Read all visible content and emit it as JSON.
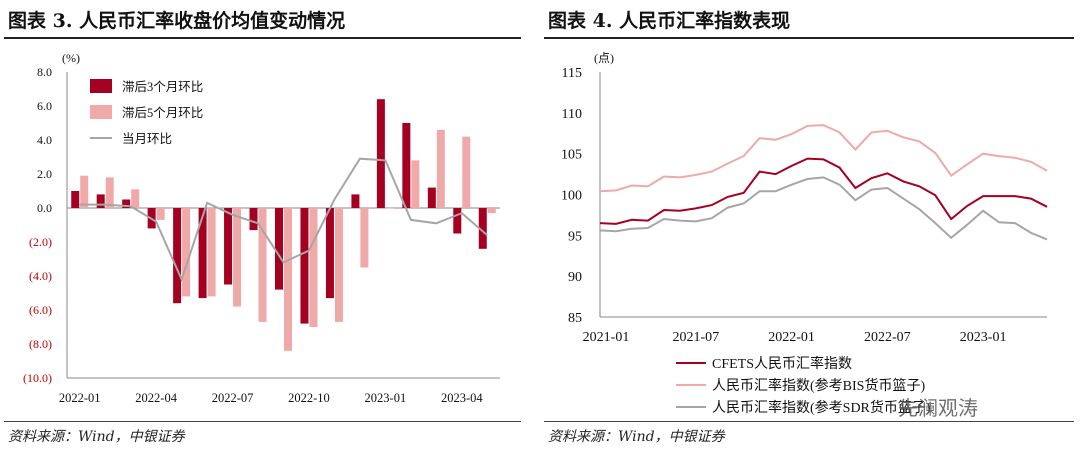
{
  "left": {
    "title": "图表 3. 人民币汇率收盘价均值变动情况",
    "source": "资料来源：Wind，中银证券",
    "chart_data": {
      "type": "bar",
      "title": "人民币汇率收盘价均值变动情况",
      "unit_label": "(%)",
      "ylim": [
        -10,
        8
      ],
      "yticks": [
        8,
        6,
        4,
        2,
        0,
        -2,
        -4,
        -6,
        -8,
        -10
      ],
      "ytick_labels": [
        "8.0",
        "6.0",
        "4.0",
        "2.0",
        "0.0",
        "(2.0)",
        "(4.0)",
        "(6.0)",
        "(8.0)",
        "(10.0)"
      ],
      "categories": [
        "2022-01",
        "2022-02",
        "2022-03",
        "2022-04",
        "2022-05",
        "2022-06",
        "2022-07",
        "2022-08",
        "2022-09",
        "2022-10",
        "2022-11",
        "2022-12",
        "2023-01",
        "2023-02",
        "2023-03",
        "2023-04",
        "2023-05"
      ],
      "x_tick_labels": [
        "2022-01",
        "2022-04",
        "2022-07",
        "2022-10",
        "2023-01",
        "2023-04"
      ],
      "x_tick_index": [
        0,
        3,
        6,
        9,
        12,
        15
      ],
      "series": [
        {
          "name": "滞后3个月环比",
          "type": "bar",
          "color": "#a50021",
          "values": [
            1.0,
            0.8,
            0.5,
            -1.2,
            -5.6,
            -5.3,
            -4.5,
            -1.3,
            -4.8,
            -6.8,
            -5.3,
            0.8,
            6.4,
            5.0,
            1.2,
            -1.5,
            -2.4
          ]
        },
        {
          "name": "滞后5个月环比",
          "type": "bar",
          "color": "#efa9a9",
          "values": [
            1.9,
            1.8,
            1.1,
            -0.7,
            -5.2,
            -5.2,
            -5.8,
            -6.7,
            -8.4,
            -7.0,
            -6.7,
            -3.5,
            0.0,
            2.8,
            4.6,
            4.2,
            -0.3
          ]
        },
        {
          "name": "当月环比",
          "type": "line",
          "color": "#a6a6a6",
          "values": [
            0.2,
            0.2,
            0.1,
            -0.8,
            -4.2,
            0.3,
            -0.4,
            -0.9,
            -3.2,
            -2.5,
            0.5,
            2.9,
            2.8,
            -0.7,
            -0.9,
            -0.3,
            -1.6
          ]
        }
      ]
    }
  },
  "right": {
    "title": "图表 4. 人民币汇率指数表现",
    "source": "资料来源：Wind，中银证券",
    "watermark": "先澜观涛",
    "chart_data": {
      "type": "line",
      "title": "人民币汇率指数表现",
      "unit_label": "(点)",
      "ylim": [
        85,
        115
      ],
      "yticks": [
        115,
        110,
        105,
        100,
        95,
        90,
        85
      ],
      "ytick_labels": [
        "115",
        "110",
        "105",
        "100",
        "95",
        "90",
        "85"
      ],
      "x": [
        "2021-01",
        "2021-02",
        "2021-03",
        "2021-04",
        "2021-05",
        "2021-06",
        "2021-07",
        "2021-08",
        "2021-09",
        "2021-10",
        "2021-11",
        "2021-12",
        "2022-01",
        "2022-02",
        "2022-03",
        "2022-04",
        "2022-05",
        "2022-06",
        "2022-07",
        "2022-08",
        "2022-09",
        "2022-10",
        "2022-11",
        "2022-12",
        "2023-01",
        "2023-02",
        "2023-03",
        "2023-04",
        "2023-05"
      ],
      "x_tick_labels": [
        "2021-01",
        "2021-07",
        "2022-01",
        "2022-07",
        "2023-01"
      ],
      "x_tick_index": [
        0,
        6,
        12,
        18,
        24
      ],
      "series": [
        {
          "name": "CFETS人民币汇率指数",
          "color": "#a50021",
          "values": [
            96.5,
            96.4,
            96.9,
            96.8,
            98.1,
            98.0,
            98.3,
            98.7,
            99.7,
            100.2,
            102.8,
            102.5,
            103.5,
            104.4,
            104.3,
            103.3,
            100.8,
            102.0,
            102.6,
            101.6,
            101.0,
            99.9,
            97.0,
            98.6,
            99.8,
            99.8,
            99.8,
            99.5,
            98.5
          ]
        },
        {
          "name": "人民币汇率指数(参考BIS货币篮子)",
          "color": "#efa9a9",
          "values": [
            100.4,
            100.5,
            101.1,
            101.0,
            102.2,
            102.1,
            102.4,
            102.8,
            103.8,
            104.7,
            106.9,
            106.7,
            107.4,
            108.4,
            108.5,
            107.6,
            105.5,
            107.6,
            107.8,
            107.0,
            106.5,
            105.1,
            102.3,
            103.7,
            105.0,
            104.7,
            104.5,
            104.0,
            102.9
          ]
        },
        {
          "name": "人民币汇率指数(参考SDR货币篮子)",
          "color": "#a6a6a6",
          "values": [
            95.6,
            95.5,
            95.8,
            95.9,
            97.0,
            96.8,
            96.7,
            97.1,
            98.4,
            98.9,
            100.4,
            100.4,
            101.2,
            101.9,
            102.1,
            101.2,
            99.3,
            100.6,
            100.8,
            99.5,
            98.2,
            96.5,
            94.7,
            96.3,
            98.0,
            96.6,
            96.5,
            95.3,
            94.5
          ]
        }
      ]
    }
  }
}
